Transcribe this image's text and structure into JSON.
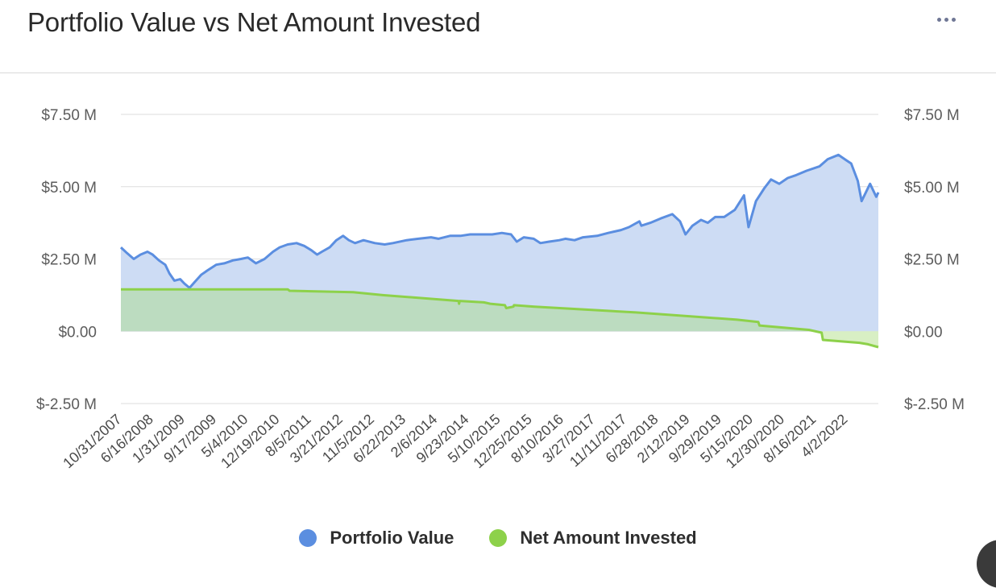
{
  "header": {
    "title": "Portfolio Value vs Net Amount Invested",
    "menu_icon": "more-horizontal-icon"
  },
  "colors": {
    "portfolio_line": "#5b8ee0",
    "portfolio_fill": "#cddcf4",
    "invested_line": "#8dd14a",
    "invested_fill": "#bcdcc0",
    "invested_fill_negative": "#d8efc4",
    "grid": "#dedede"
  },
  "chart_data": {
    "type": "area",
    "title": "Portfolio Value vs Net Amount Invested",
    "xlabel": "",
    "ylabel": "",
    "ylim": [
      -2500000,
      7500000
    ],
    "y_ticks": [
      7500000,
      5000000,
      2500000,
      0,
      -2500000
    ],
    "y_tick_labels": [
      "$7.50 M",
      "$5.00 M",
      "$2.50 M",
      "$0.00",
      "$-2.50 M"
    ],
    "x_tick_labels": [
      "10/31/2007",
      "6/16/2008",
      "1/31/2009",
      "9/17/2009",
      "5/4/2010",
      "12/19/2010",
      "8/5/2011",
      "3/21/2012",
      "11/5/2012",
      "6/22/2013",
      "2/6/2014",
      "9/23/2014",
      "5/10/2015",
      "12/25/2015",
      "8/10/2016",
      "3/27/2017",
      "11/11/2017",
      "6/28/2018",
      "2/12/2019",
      "9/29/2019",
      "5/15/2020",
      "12/30/2020",
      "8/16/2021",
      "4/2/2022"
    ],
    "x_range": [
      "2007-10-31",
      "2022-10-15"
    ],
    "grid": true,
    "secondary_y_axis": true,
    "legend_position": "bottom",
    "series": [
      {
        "name": "Portfolio Value",
        "x": [
          "2007-10-31",
          "2007-12-15",
          "2008-02-01",
          "2008-03-20",
          "2008-05-10",
          "2008-06-16",
          "2008-08-01",
          "2008-09-15",
          "2008-10-15",
          "2008-11-20",
          "2009-01-01",
          "2009-01-31",
          "2009-03-09",
          "2009-04-15",
          "2009-06-01",
          "2009-07-15",
          "2009-09-17",
          "2009-11-15",
          "2010-01-15",
          "2010-03-15",
          "2010-05-04",
          "2010-07-01",
          "2010-09-01",
          "2010-11-01",
          "2010-12-19",
          "2011-02-15",
          "2011-04-20",
          "2011-06-15",
          "2011-08-05",
          "2011-09-15",
          "2011-10-20",
          "2011-12-15",
          "2012-02-01",
          "2012-03-21",
          "2012-05-01",
          "2012-06-15",
          "2012-08-15",
          "2012-11-05",
          "2013-01-15",
          "2013-03-15",
          "2013-06-22",
          "2013-09-15",
          "2013-12-15",
          "2014-02-06",
          "2014-05-01",
          "2014-07-15",
          "2014-09-23",
          "2014-12-15",
          "2015-03-01",
          "2015-05-10",
          "2015-07-15",
          "2015-08-25",
          "2015-10-15",
          "2015-12-25",
          "2016-02-11",
          "2016-04-15",
          "2016-06-27",
          "2016-08-10",
          "2016-10-15",
          "2016-12-15",
          "2017-03-27",
          "2017-06-15",
          "2017-09-15",
          "2017-11-11",
          "2018-01-26",
          "2018-02-09",
          "2018-04-15",
          "2018-06-28",
          "2018-09-20",
          "2018-11-15",
          "2018-12-24",
          "2019-02-12",
          "2019-04-15",
          "2019-06-03",
          "2019-07-26",
          "2019-09-29",
          "2019-12-15",
          "2020-02-19",
          "2020-03-23",
          "2020-05-15",
          "2020-07-15",
          "2020-09-01",
          "2020-10-30",
          "2020-12-30",
          "2021-03-01",
          "2021-05-15",
          "2021-08-16",
          "2021-10-15",
          "2021-12-31",
          "2022-03-01",
          "2022-04-02",
          "2022-05-20",
          "2022-06-16",
          "2022-08-16",
          "2022-09-30",
          "2022-10-15"
        ],
        "values": [
          2900000,
          2700000,
          2500000,
          2650000,
          2750000,
          2650000,
          2450000,
          2300000,
          2000000,
          1750000,
          1800000,
          1650000,
          1500000,
          1700000,
          1950000,
          2100000,
          2300000,
          2350000,
          2450000,
          2500000,
          2550000,
          2350000,
          2500000,
          2750000,
          2900000,
          3000000,
          3050000,
          2950000,
          2800000,
          2650000,
          2750000,
          2900000,
          3150000,
          3300000,
          3150000,
          3050000,
          3150000,
          3050000,
          3000000,
          3050000,
          3150000,
          3200000,
          3250000,
          3200000,
          3300000,
          3300000,
          3350000,
          3350000,
          3350000,
          3400000,
          3350000,
          3100000,
          3250000,
          3200000,
          3050000,
          3100000,
          3150000,
          3200000,
          3150000,
          3250000,
          3300000,
          3400000,
          3500000,
          3600000,
          3800000,
          3650000,
          3750000,
          3900000,
          4050000,
          3800000,
          3350000,
          3650000,
          3850000,
          3750000,
          3950000,
          3950000,
          4200000,
          4700000,
          3600000,
          4500000,
          4950000,
          5250000,
          5100000,
          5300000,
          5400000,
          5550000,
          5700000,
          5950000,
          6100000,
          5900000,
          5800000,
          5200000,
          4500000,
          5100000,
          4650000,
          4800000
        ]
      },
      {
        "name": "Net Amount Invested",
        "x": [
          "2007-10-31",
          "2011-02-15",
          "2011-03-01",
          "2012-06-01",
          "2013-01-01",
          "2014-07-01",
          "2014-07-05",
          "2014-07-10",
          "2015-01-01",
          "2015-02-15",
          "2015-06-01",
          "2015-06-10",
          "2015-08-01",
          "2015-08-05",
          "2016-01-01",
          "2018-01-01",
          "2020-01-01",
          "2020-06-01",
          "2020-06-10",
          "2021-06-01",
          "2021-09-01",
          "2021-09-10",
          "2022-06-01",
          "2022-08-01",
          "2022-10-15"
        ],
        "values": [
          1450000,
          1450000,
          1400000,
          1350000,
          1250000,
          1050000,
          950000,
          1050000,
          1000000,
          950000,
          900000,
          800000,
          850000,
          900000,
          850000,
          650000,
          400000,
          320000,
          200000,
          50000,
          -50000,
          -300000,
          -400000,
          -450000,
          -550000
        ]
      }
    ]
  },
  "legend": {
    "items": [
      {
        "label": "Portfolio Value",
        "color": "#5b8ee0"
      },
      {
        "label": "Net Amount Invested",
        "color": "#8dd14a"
      }
    ]
  }
}
